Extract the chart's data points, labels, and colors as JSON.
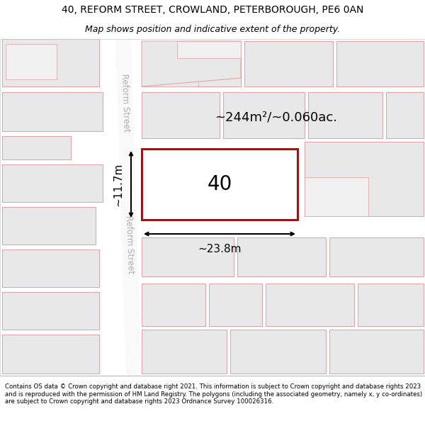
{
  "title": "40, REFORM STREET, CROWLAND, PETERBOROUGH, PE6 0AN",
  "subtitle": "Map shows position and indicative extent of the property.",
  "footer": "Contains OS data © Crown copyright and database right 2021. This information is subject to Crown copyright and database rights 2023 and is reproduced with the permission of HM Land Registry. The polygons (including the associated geometry, namely x, y co-ordinates) are subject to Crown copyright and database rights 2023 Ordnance Survey 100026316.",
  "bg_color": "#ffffff",
  "building_fill": "#e8e8e8",
  "building_edge": "#e0a0a0",
  "highlight_edge": "#cc0000",
  "area_text": "~244m²/~0.060ac.",
  "number_text": "40",
  "width_text": "~23.8m",
  "height_text": "~11.7m",
  "street_label": "Reform Street",
  "title_fontsize": 10,
  "subtitle_fontsize": 9,
  "footer_fontsize": 6.2
}
